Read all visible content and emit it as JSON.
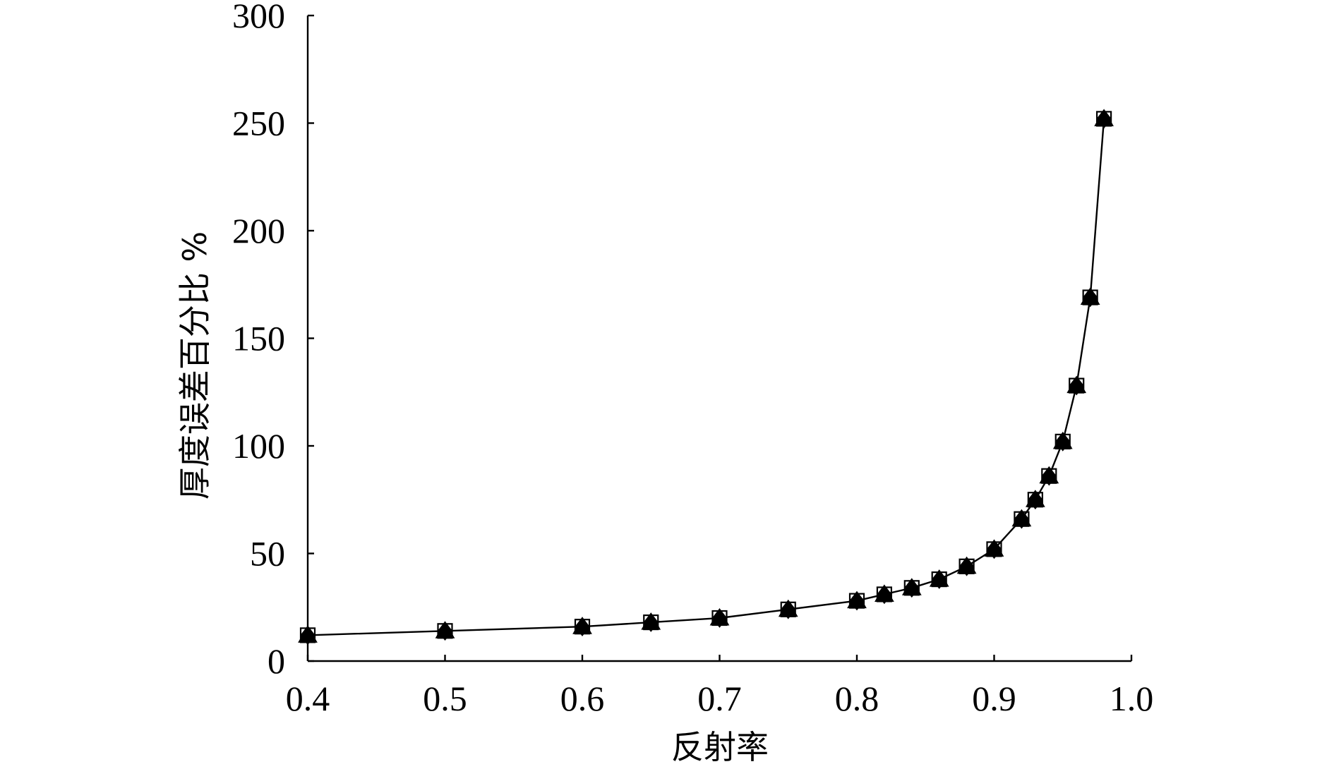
{
  "chart_data": {
    "type": "line",
    "title": "",
    "xlabel": "反射率",
    "ylabel": "厚度误差百分比 %",
    "xlim": [
      0.4,
      1.0
    ],
    "ylim": [
      0,
      300
    ],
    "xticks": [
      "0.4",
      "0.5",
      "0.6",
      "0.7",
      "0.8",
      "0.9",
      "1.0"
    ],
    "yticks": [
      "0",
      "50",
      "100",
      "150",
      "200",
      "250",
      "300"
    ],
    "grid": false,
    "legend": "none",
    "markers": [
      "square",
      "triangle",
      "diamond"
    ],
    "x": [
      0.4,
      0.5,
      0.6,
      0.65,
      0.7,
      0.75,
      0.8,
      0.82,
      0.84,
      0.86,
      0.88,
      0.9,
      0.92,
      0.93,
      0.94,
      0.95,
      0.96,
      0.97,
      0.98
    ],
    "values": [
      12,
      14,
      16,
      18,
      20,
      24,
      28,
      31,
      34,
      38,
      44,
      52,
      66,
      75,
      86,
      102,
      128,
      169,
      252
    ]
  }
}
